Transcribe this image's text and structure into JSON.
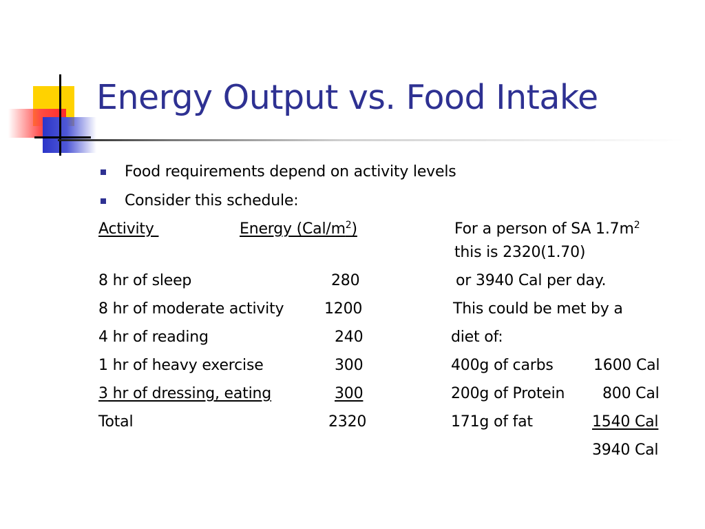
{
  "title": "Energy Output vs. Food Intake",
  "colors": {
    "title": "#2e3192",
    "bullet": "#2e3192",
    "accent_yellow": "#ffd200",
    "accent_red": "#ff2a2a",
    "accent_blue": "#2b35c9"
  },
  "bullets": [
    "Food requirements depend on activity levels",
    "Consider this schedule:"
  ],
  "headers": {
    "activity": "Activity ",
    "energy_pre": "Energy (Cal/m",
    "energy_sup": "2",
    "energy_post": ")"
  },
  "rows": [
    {
      "activity": "8 hr of sleep",
      "energy": "280"
    },
    {
      "activity": "8 hr of moderate activity",
      "energy": "1200"
    },
    {
      "activity": "4 hr of reading",
      "energy": "240"
    },
    {
      "activity": "1 hr of heavy exercise",
      "energy": "300"
    },
    {
      "activity": "3 hr of dressing, eating",
      "energy": "300"
    },
    {
      "activity": "Total",
      "energy": "2320"
    }
  ],
  "note": {
    "line1_pre": "For a person of SA 1.7m",
    "line1_sup": "2",
    "line2": "this is 2320(1.70)",
    "line3": "or 3940 Cal per day.",
    "line4": "This could be met by a",
    "line5": "diet of:"
  },
  "diet": [
    {
      "item": "400g of carbs",
      "cal": "1600 Cal"
    },
    {
      "item": "200g of Protein",
      "cal": "800 Cal"
    },
    {
      "item": "171g of fat",
      "cal": "1540 Cal"
    }
  ],
  "diet_total": "3940 Cal"
}
